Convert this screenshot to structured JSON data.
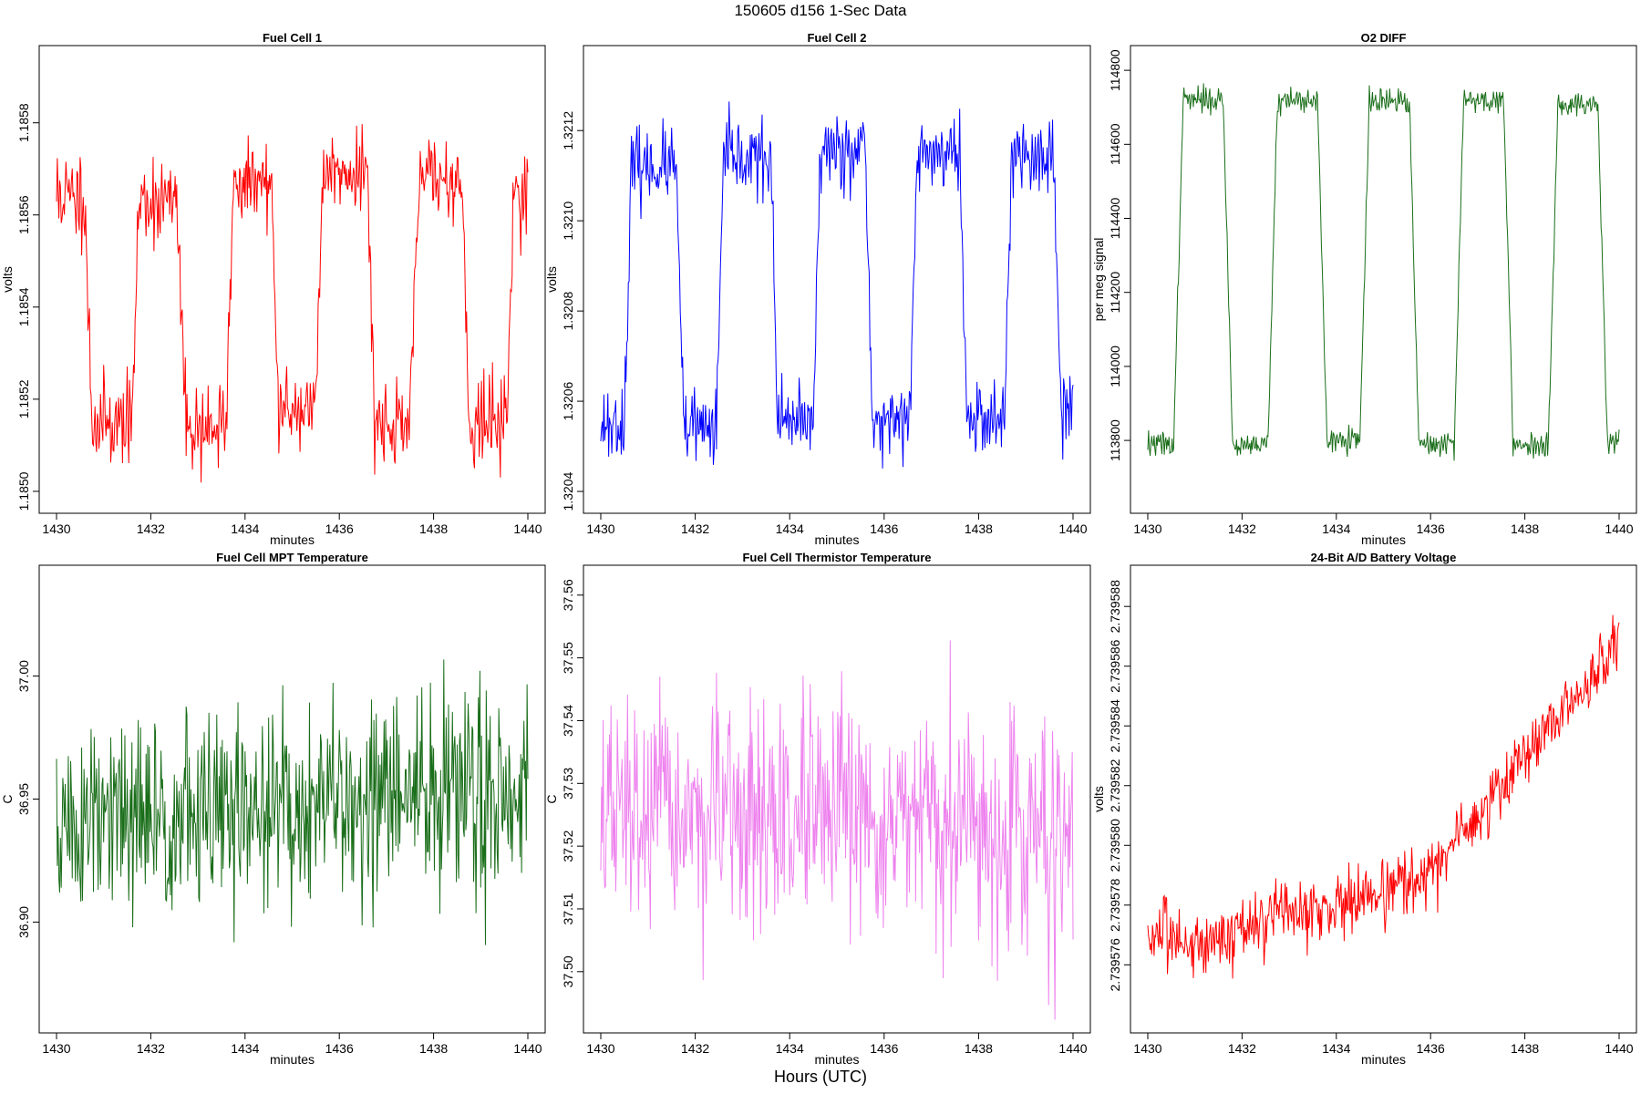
{
  "figure": {
    "title": "150605   d156   1-Sec Data",
    "footer": "Hours (UTC)"
  },
  "chart_data": [
    {
      "type": "line",
      "title": "Fuel Cell 1",
      "xlabel": "minutes",
      "ylabel": "volts",
      "color": "#ff0000",
      "xlim": [
        1430,
        1440
      ],
      "ylim": [
        1.18499,
        1.18593
      ],
      "xticks": [
        1430,
        1432,
        1434,
        1436,
        1438,
        1440
      ],
      "xtick_labels": [
        "1430",
        "1432",
        "1434",
        "1436",
        "1438",
        "1440"
      ],
      "yticks": [
        1.185,
        1.1852,
        1.1854,
        1.1856,
        1.1858
      ],
      "ytick_labels": [
        "1.1850",
        "1.1852",
        "1.1854",
        "1.1856",
        "1.1858"
      ],
      "series": [
        {
          "pattern": "square_wave",
          "segments": [
            {
              "x_start": 1430.0,
              "x_end": 1430.6,
              "level": 1.18564
            },
            {
              "x_start": 1430.75,
              "x_end": 1431.6,
              "level": 1.18515
            },
            {
              "x_start": 1431.75,
              "x_end": 1432.55,
              "level": 1.18563
            },
            {
              "x_start": 1432.75,
              "x_end": 1433.6,
              "level": 1.18514
            },
            {
              "x_start": 1433.75,
              "x_end": 1434.55,
              "level": 1.18567
            },
            {
              "x_start": 1434.7,
              "x_end": 1435.5,
              "level": 1.18518
            },
            {
              "x_start": 1435.65,
              "x_end": 1436.6,
              "level": 1.1857
            },
            {
              "x_start": 1436.75,
              "x_end": 1437.5,
              "level": 1.18515
            },
            {
              "x_start": 1437.7,
              "x_end": 1438.6,
              "level": 1.18568
            },
            {
              "x_start": 1438.75,
              "x_end": 1439.55,
              "level": 1.18515
            },
            {
              "x_start": 1439.7,
              "x_end": 1440.0,
              "level": 1.18565
            }
          ],
          "noise": 8e-05,
          "seed": 11
        }
      ]
    },
    {
      "type": "line",
      "title": "Fuel Cell 2",
      "xlabel": "minutes",
      "ylabel": "volts",
      "color": "#0000ff",
      "xlim": [
        1430,
        1440
      ],
      "ylim": [
        1.32039,
        1.32135
      ],
      "xticks": [
        1430,
        1432,
        1434,
        1436,
        1438,
        1440
      ],
      "xtick_labels": [
        "1430",
        "1432",
        "1434",
        "1436",
        "1438",
        "1440"
      ],
      "yticks": [
        1.3204,
        1.3206,
        1.3208,
        1.321,
        1.3212
      ],
      "ytick_labels": [
        "1.3204",
        "1.3206",
        "1.3208",
        "1.3210",
        "1.3212"
      ],
      "series": [
        {
          "pattern": "square_wave",
          "segments": [
            {
              "x_start": 1430.0,
              "x_end": 1430.5,
              "level": 1.32055
            },
            {
              "x_start": 1430.65,
              "x_end": 1431.6,
              "level": 1.32112
            },
            {
              "x_start": 1431.75,
              "x_end": 1432.45,
              "level": 1.32054
            },
            {
              "x_start": 1432.6,
              "x_end": 1433.6,
              "level": 1.32114
            },
            {
              "x_start": 1433.75,
              "x_end": 1434.5,
              "level": 1.32055
            },
            {
              "x_start": 1434.65,
              "x_end": 1435.6,
              "level": 1.32116
            },
            {
              "x_start": 1435.75,
              "x_end": 1436.55,
              "level": 1.32056
            },
            {
              "x_start": 1436.7,
              "x_end": 1437.6,
              "level": 1.32115
            },
            {
              "x_start": 1437.75,
              "x_end": 1438.55,
              "level": 1.32056
            },
            {
              "x_start": 1438.7,
              "x_end": 1439.6,
              "level": 1.32114
            },
            {
              "x_start": 1439.75,
              "x_end": 1440.0,
              "level": 1.32058
            }
          ],
          "noise": 7e-05,
          "seed": 23
        }
      ]
    },
    {
      "type": "line",
      "title": "O2 DIFF",
      "xlabel": "minutes",
      "ylabel": "per meg signal",
      "color": "#1a6e1a",
      "xlim": [
        1430,
        1440
      ],
      "ylim": [
        113650,
        114820
      ],
      "xticks": [
        1430,
        1432,
        1434,
        1436,
        1438,
        1440
      ],
      "xtick_labels": [
        "1430",
        "1432",
        "1434",
        "1436",
        "1438",
        "1440"
      ],
      "yticks": [
        113800,
        114000,
        114200,
        114400,
        114600,
        114800
      ],
      "ytick_labels": [
        "113800",
        "114000",
        "114200",
        "114400",
        "114600",
        "114800"
      ],
      "series": [
        {
          "pattern": "square_wave",
          "segments": [
            {
              "x_start": 1430.0,
              "x_end": 1430.55,
              "level": 113790
            },
            {
              "x_start": 1430.75,
              "x_end": 1431.6,
              "level": 114720
            },
            {
              "x_start": 1431.8,
              "x_end": 1432.55,
              "level": 113790
            },
            {
              "x_start": 1432.75,
              "x_end": 1433.6,
              "level": 114720
            },
            {
              "x_start": 1433.8,
              "x_end": 1434.5,
              "level": 113800
            },
            {
              "x_start": 1434.7,
              "x_end": 1435.55,
              "level": 114715
            },
            {
              "x_start": 1435.75,
              "x_end": 1436.5,
              "level": 113790
            },
            {
              "x_start": 1436.7,
              "x_end": 1437.55,
              "level": 114720
            },
            {
              "x_start": 1437.75,
              "x_end": 1438.5,
              "level": 113790
            },
            {
              "x_start": 1438.7,
              "x_end": 1439.55,
              "level": 114710
            },
            {
              "x_start": 1439.75,
              "x_end": 1440.0,
              "level": 113800
            }
          ],
          "noise": 28,
          "seed": 37
        }
      ]
    },
    {
      "type": "line",
      "title": "Fuel Cell MPT Temperature",
      "xlabel": "minutes",
      "ylabel": "C",
      "color": "#1a6e1a",
      "xlim": [
        1430,
        1440
      ],
      "ylim": [
        36.862,
        37.038
      ],
      "xticks": [
        1430,
        1432,
        1434,
        1436,
        1438,
        1440
      ],
      "xtick_labels": [
        "1430",
        "1432",
        "1434",
        "1436",
        "1438",
        "1440"
      ],
      "yticks": [
        36.9,
        36.95,
        37.0
      ],
      "ytick_labels": [
        "36.90",
        "36.95",
        "37.00"
      ],
      "series": [
        {
          "pattern": "noise",
          "mean_start": 36.938,
          "mean_end": 36.955,
          "spread": 0.026,
          "points": 600,
          "seed": 51
        }
      ]
    },
    {
      "type": "line",
      "title": "Fuel Cell Thermistor Temperature",
      "xlabel": "minutes",
      "ylabel": "C",
      "color": "#ee82ee",
      "xlim": [
        1430,
        1440
      ],
      "ylim": [
        37.493,
        37.562
      ],
      "xticks": [
        1430,
        1432,
        1434,
        1436,
        1438,
        1440
      ],
      "xtick_labels": [
        "1430",
        "1432",
        "1434",
        "1436",
        "1438",
        "1440"
      ],
      "yticks": [
        37.5,
        37.51,
        37.52,
        37.53,
        37.54,
        37.55,
        37.56
      ],
      "ytick_labels": [
        "37.50",
        "37.51",
        "37.52",
        "37.53",
        "37.54",
        "37.55",
        "37.56"
      ],
      "series": [
        {
          "pattern": "noise",
          "mean_start": 37.525,
          "mean_end": 37.522,
          "spread": 0.011,
          "points": 600,
          "seed": 67
        }
      ]
    },
    {
      "type": "line",
      "title": "24-Bit A/D Battery Voltage",
      "xlabel": "minutes",
      "ylabel": "volts",
      "color": "#ff0000",
      "xlim": [
        1430,
        1440
      ],
      "ylim": [
        2.7395743,
        2.7395888
      ],
      "xticks": [
        1430,
        1432,
        1434,
        1436,
        1438,
        1440
      ],
      "xtick_labels": [
        "1430",
        "1432",
        "1434",
        "1436",
        "1438",
        "1440"
      ],
      "yticks": [
        2.739576,
        2.739578,
        2.73958,
        2.739582,
        2.739584,
        2.739586,
        2.739588
      ],
      "ytick_labels": [
        "2.739576",
        "2.739578",
        "2.739580",
        "2.739582",
        "2.739584",
        "2.739586",
        "2.739588"
      ],
      "series": [
        {
          "pattern": "trend",
          "curve": [
            [
              1430,
              2.739577
            ],
            [
              1431,
              2.7395767
            ],
            [
              1432,
              2.7395772
            ],
            [
              1433,
              2.7395777
            ],
            [
              1434,
              2.739578
            ],
            [
              1435,
              2.7395785
            ],
            [
              1436,
              2.739579
            ],
            [
              1437,
              2.739581
            ],
            [
              1438,
              2.739583
            ],
            [
              1439,
              2.7395848
            ],
            [
              1440,
              2.7395868
            ]
          ],
          "spread": 8e-07,
          "points": 600,
          "seed": 83
        }
      ]
    }
  ]
}
